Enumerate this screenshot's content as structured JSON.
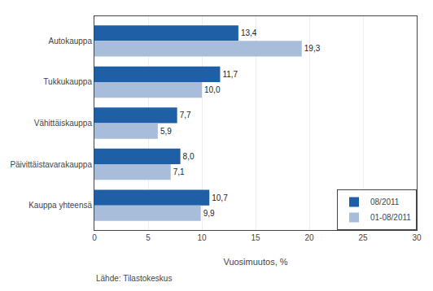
{
  "chart_data": {
    "type": "bar",
    "orientation": "horizontal",
    "categories": [
      "Kauppa yhteensä",
      "Päivittäistavarakauppa",
      "Vähittäiskauppa",
      "Tukkukauppa",
      "Autokauppa"
    ],
    "series": [
      {
        "name": "08/2011",
        "color": "#1F5FA6",
        "values": [
          10.7,
          8.0,
          7.7,
          11.7,
          13.4
        ],
        "value_labels": [
          "10,7",
          "8,0",
          "7,7",
          "11,7",
          "13,4"
        ]
      },
      {
        "name": "01-08/2011",
        "color": "#A8BDD9",
        "values": [
          9.9,
          7.1,
          5.9,
          10.0,
          19.3
        ],
        "value_labels": [
          "9,9",
          "7,1",
          "5,9",
          "10,0",
          "19,3"
        ]
      }
    ],
    "xlabel": "Vuosimuutos, %",
    "xlim": [
      0,
      30
    ],
    "xticks": [
      0,
      5,
      10,
      15,
      20,
      25,
      30
    ],
    "grid": true,
    "legend": "lower right",
    "data_labels": true,
    "annotations": [
      "Lähde: Tilastokeskus"
    ]
  }
}
